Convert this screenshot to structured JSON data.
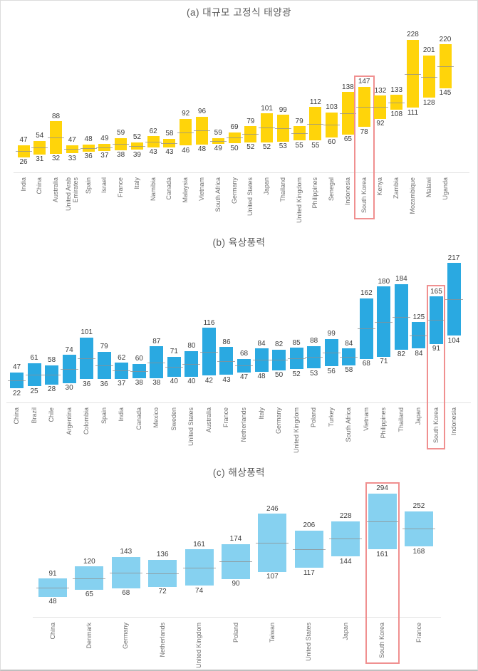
{
  "chart_data": [
    {
      "type": "bar",
      "subtype": "floating-range-bar",
      "title": "(a) 대규모 고정식 태양광",
      "bar_color": "#ffd40a",
      "highlight_country": "South Korea",
      "highlight_color": "#f09090",
      "ylim": [
        0,
        240
      ],
      "grid": false,
      "legend": "none",
      "midline": "midpoint of min and max",
      "categories": [
        "India",
        "China",
        "Australia",
        "United Arab Emirates",
        "Spain",
        "Israel",
        "France",
        "Italy",
        "Namibia",
        "Canada",
        "Malaysia",
        "Vietnam",
        "South Africa",
        "Germany",
        "United States",
        "Japan",
        "Thailand",
        "United Kingdom",
        "Philippines",
        "Senegal",
        "Indonesia",
        "South Korea",
        "Kenya",
        "Zambia",
        "Mozambique",
        "Malawi",
        "Uganda"
      ],
      "series": [
        {
          "name": "min",
          "values": [
            26,
            31,
            32,
            33,
            36,
            37,
            38,
            39,
            43,
            43,
            46,
            48,
            49,
            50,
            52,
            52,
            53,
            55,
            55,
            60,
            65,
            78,
            92,
            108,
            111,
            128,
            145
          ]
        },
        {
          "name": "max",
          "values": [
            47,
            54,
            88,
            47,
            48,
            49,
            59,
            52,
            62,
            58,
            92,
            96,
            59,
            69,
            79,
            101,
            99,
            79,
            112,
            103,
            138,
            147,
            132,
            133,
            228,
            201,
            220
          ]
        }
      ]
    },
    {
      "type": "bar",
      "subtype": "floating-range-bar",
      "title": "(b) 육상풍력",
      "bar_color": "#2aa9e1",
      "highlight_country": "South Korea",
      "highlight_color": "#f09090",
      "ylim": [
        0,
        230
      ],
      "grid": false,
      "legend": "none",
      "midline": "midpoint of min and max",
      "categories": [
        "China",
        "Brazil",
        "Chile",
        "Argentina",
        "Colombia",
        "Spain",
        "India",
        "Canada",
        "Mexico",
        "Sweden",
        "United States",
        "Australia",
        "France",
        "Netherlands",
        "Italy",
        "Germany",
        "United Kingdom",
        "Poland",
        "Turkey",
        "South Africa",
        "Vietnam",
        "Philippines",
        "Thailand",
        "Japan",
        "South Korea",
        "Indonesia"
      ],
      "series": [
        {
          "name": "min",
          "values": [
            22,
            25,
            28,
            30,
            36,
            36,
            37,
            38,
            38,
            40,
            40,
            42,
            43,
            47,
            48,
            50,
            52,
            53,
            56,
            58,
            68,
            71,
            82,
            84,
            91,
            104
          ]
        },
        {
          "name": "max",
          "values": [
            47,
            61,
            58,
            74,
            101,
            79,
            62,
            60,
            87,
            71,
            80,
            116,
            86,
            68,
            84,
            82,
            85,
            88,
            99,
            84,
            162,
            180,
            184,
            125,
            165,
            217
          ]
        }
      ]
    },
    {
      "type": "bar",
      "subtype": "floating-range-bar",
      "title": "(c) 해상풍력",
      "bar_color": "#86d1f0",
      "highlight_country": "South Korea",
      "highlight_color": "#f09090",
      "ylim": [
        0,
        310
      ],
      "grid": false,
      "legend": "none",
      "midline": "midpoint of min and max",
      "categories": [
        "China",
        "Denmark",
        "Germany",
        "Netherlands",
        "United Kingdom",
        "Poland",
        "Taiwan",
        "United States",
        "Japan",
        "South Korea",
        "France"
      ],
      "series": [
        {
          "name": "min",
          "values": [
            48,
            65,
            68,
            72,
            74,
            90,
            107,
            117,
            144,
            161,
            168
          ]
        },
        {
          "name": "max",
          "values": [
            91,
            120,
            143,
            136,
            161,
            174,
            246,
            206,
            228,
            294,
            252
          ]
        }
      ]
    }
  ]
}
